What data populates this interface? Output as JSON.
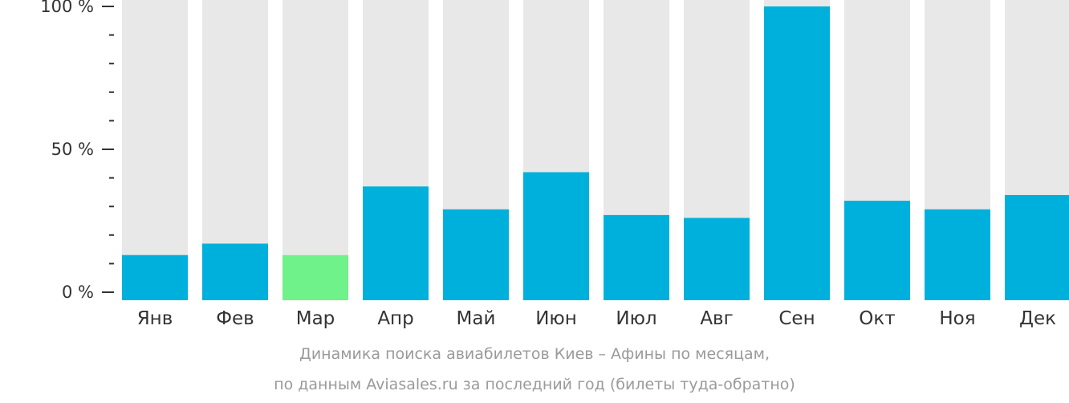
{
  "chart_data": {
    "type": "bar",
    "categories": [
      "Янв",
      "Фев",
      "Мар",
      "Апр",
      "Май",
      "Июн",
      "Июл",
      "Авг",
      "Сен",
      "Окт",
      "Ноя",
      "Дек"
    ],
    "values": [
      13,
      17,
      13,
      37,
      29,
      42,
      27,
      26,
      100,
      32,
      29,
      34
    ],
    "highlight_index": 2,
    "ylim": [
      0,
      100
    ],
    "yticks": [
      "0 %",
      "50 %",
      "100 %"
    ],
    "caption": [
      "Динамика поиска авиабилетов Киев – Афины по месяцам,",
      "по данным Aviasales.ru за последний год (билеты туда-обратно)"
    ],
    "colors": {
      "bar": "#00b0dc",
      "highlight": "#6ff28a",
      "track": "#e8e8e8",
      "axis": "#333333"
    }
  }
}
